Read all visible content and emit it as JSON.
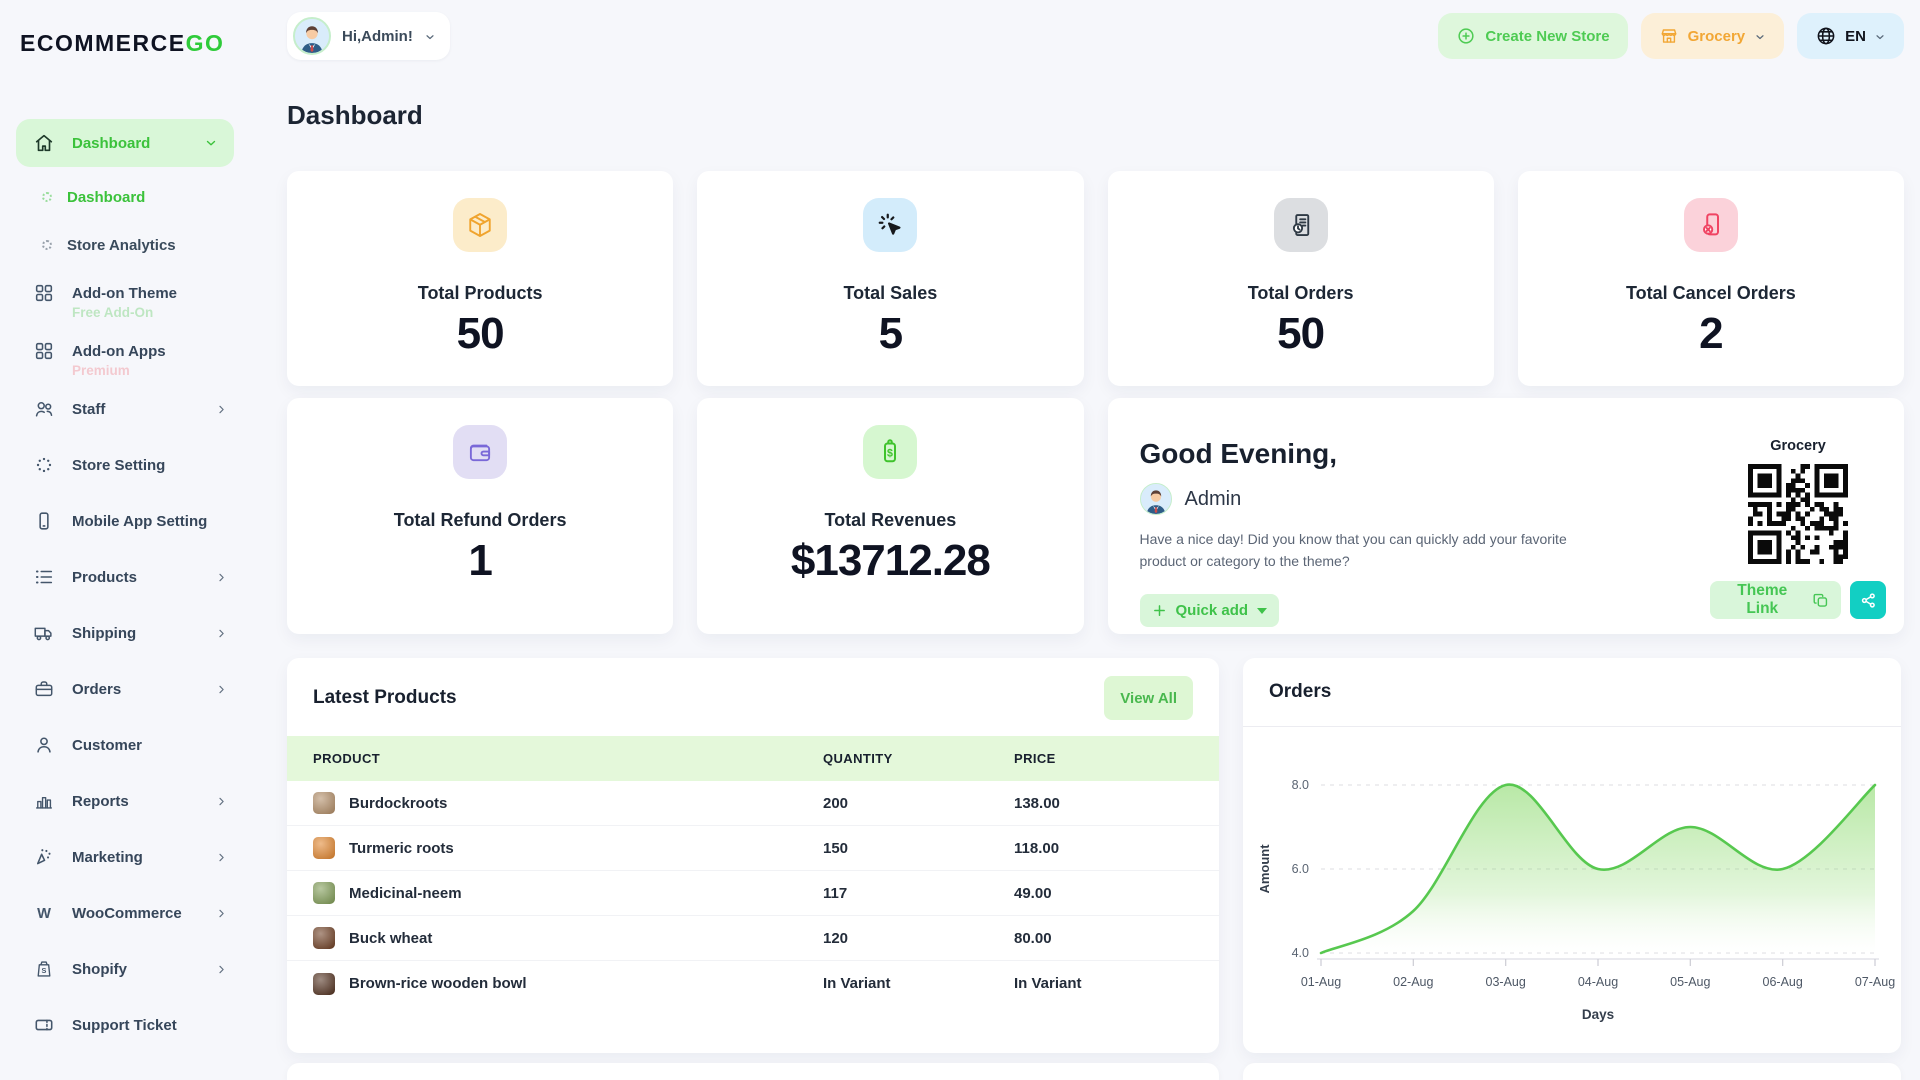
{
  "brand": {
    "primary": "ECOMMERCE",
    "accent": "GO"
  },
  "header": {
    "profile_label": "Hi,Admin!",
    "create_store_label": "Create New Store",
    "store_name": "Grocery",
    "language_code": "EN"
  },
  "page": {
    "title": "Dashboard"
  },
  "sidebar": {
    "items": [
      {
        "label": "Dashboard",
        "icon": "home-icon",
        "style": "active-parent",
        "chevron": "down"
      },
      {
        "label": "Dashboard",
        "icon": "spinner-icon",
        "style": "sub",
        "active": true
      },
      {
        "label": "Store Analytics",
        "icon": "spinner-icon",
        "style": "sub",
        "active": false
      },
      {
        "label": "Add-on Theme",
        "icon": "grid-icon",
        "badge": "Free Add-On",
        "badge_color": "green"
      },
      {
        "label": "Add-on Apps",
        "icon": "grid-icon",
        "badge": "Premium",
        "badge_color": "red"
      },
      {
        "label": "Staff",
        "icon": "users-icon",
        "chevron": "right"
      },
      {
        "label": "Store Setting",
        "icon": "dots-circle-icon"
      },
      {
        "label": "Mobile App Setting",
        "icon": "phone-icon"
      },
      {
        "label": "Products",
        "icon": "list-icon",
        "chevron": "right"
      },
      {
        "label": "Shipping",
        "icon": "truck-icon",
        "chevron": "right"
      },
      {
        "label": "Orders",
        "icon": "briefcase-icon",
        "chevron": "right"
      },
      {
        "label": "Customer",
        "icon": "user-icon"
      },
      {
        "label": "Reports",
        "icon": "bar-chart-icon",
        "chevron": "right"
      },
      {
        "label": "Marketing",
        "icon": "sparkles-icon",
        "chevron": "right"
      },
      {
        "label": "WooCommerce",
        "icon": "woocommerce-icon",
        "chevron": "right"
      },
      {
        "label": "Shopify",
        "icon": "shopify-icon",
        "chevron": "right"
      },
      {
        "label": "Support Ticket",
        "icon": "ticket-icon"
      }
    ]
  },
  "stats": [
    {
      "label": "Total Products",
      "value": "50",
      "icon": "package-icon",
      "icon_color": "#f0a42e",
      "icon_bg": "#fcecca"
    },
    {
      "label": "Total Sales",
      "value": "5",
      "icon": "cursor-click-icon",
      "icon_color": "#17191c",
      "icon_bg": "#d3ecfb"
    },
    {
      "label": "Total Orders",
      "value": "50",
      "icon": "invoice-clock-icon",
      "icon_color": "#2f3a45",
      "icon_bg": "#dcdee1"
    },
    {
      "label": "Total Cancel Orders",
      "value": "2",
      "icon": "phone-cancel-icon",
      "icon_color": "#f04463",
      "icon_bg": "#fbd2da"
    },
    {
      "label": "Total Refund Orders",
      "value": "1",
      "icon": "wallet-icon",
      "icon_color": "#7a68d8",
      "icon_bg": "#e2def4"
    },
    {
      "label": "Total Revenues",
      "value": "$13712.28",
      "icon": "price-tag-icon",
      "icon_color": "#3fc32c",
      "icon_bg": "#d6f7d0"
    }
  ],
  "greeting": {
    "title": "Good Evening,",
    "user": "Admin",
    "message": "Have a nice day! Did you know that you can quickly add your favorite product or category to the theme?",
    "quick_add_label": "Quick add",
    "store_label": "Grocery",
    "theme_link_label": "Theme Link"
  },
  "latest_products": {
    "title": "Latest Products",
    "view_all_label": "View All",
    "columns": [
      "PRODUCT",
      "QUANTITY",
      "PRICE"
    ],
    "rows": [
      {
        "product": "Burdockroots",
        "quantity": "200",
        "price": "138.00",
        "thumb_color": "#b08a63"
      },
      {
        "product": "Turmeric roots",
        "quantity": "150",
        "price": "118.00",
        "thumb_color": "#e0832a"
      },
      {
        "product": "Medicinal-neem",
        "quantity": "117",
        "price": "49.00",
        "thumb_color": "#7d9a52"
      },
      {
        "product": "Buck wheat",
        "quantity": "120",
        "price": "80.00",
        "thumb_color": "#6b3a1e"
      },
      {
        "product": "Brown-rice wooden bowl",
        "quantity": "In Variant",
        "price": "In Variant",
        "thumb_color": "#4e2c1a"
      }
    ]
  },
  "chart_data": {
    "type": "area",
    "title": "Orders",
    "x": [
      "01-Aug",
      "02-Aug",
      "03-Aug",
      "04-Aug",
      "05-Aug",
      "06-Aug",
      "07-Aug"
    ],
    "values": [
      4,
      5,
      8,
      6,
      7,
      6,
      8
    ],
    "xlabel": "Days",
    "ylabel": "Amount",
    "ylim": [
      4.0,
      8.0
    ],
    "yticks": [
      "4.0",
      "6.0",
      "8.0"
    ],
    "grid": "dashed-horizontal",
    "legend": "none",
    "line_color": "#57c84f",
    "fill_top_color": "#7fd65e",
    "fill_bottom_color": "#ffffff"
  },
  "colors": {
    "accent_green": "#3bc23b",
    "light_green_bg": "#d9f6da",
    "orange": "#f2a735",
    "orange_bg": "#fcefd8",
    "blue_bg": "#def1fc",
    "teal": "#12cfc3",
    "table_header_bg": "#e4f8da",
    "page_bg": "#f6f7fb"
  }
}
